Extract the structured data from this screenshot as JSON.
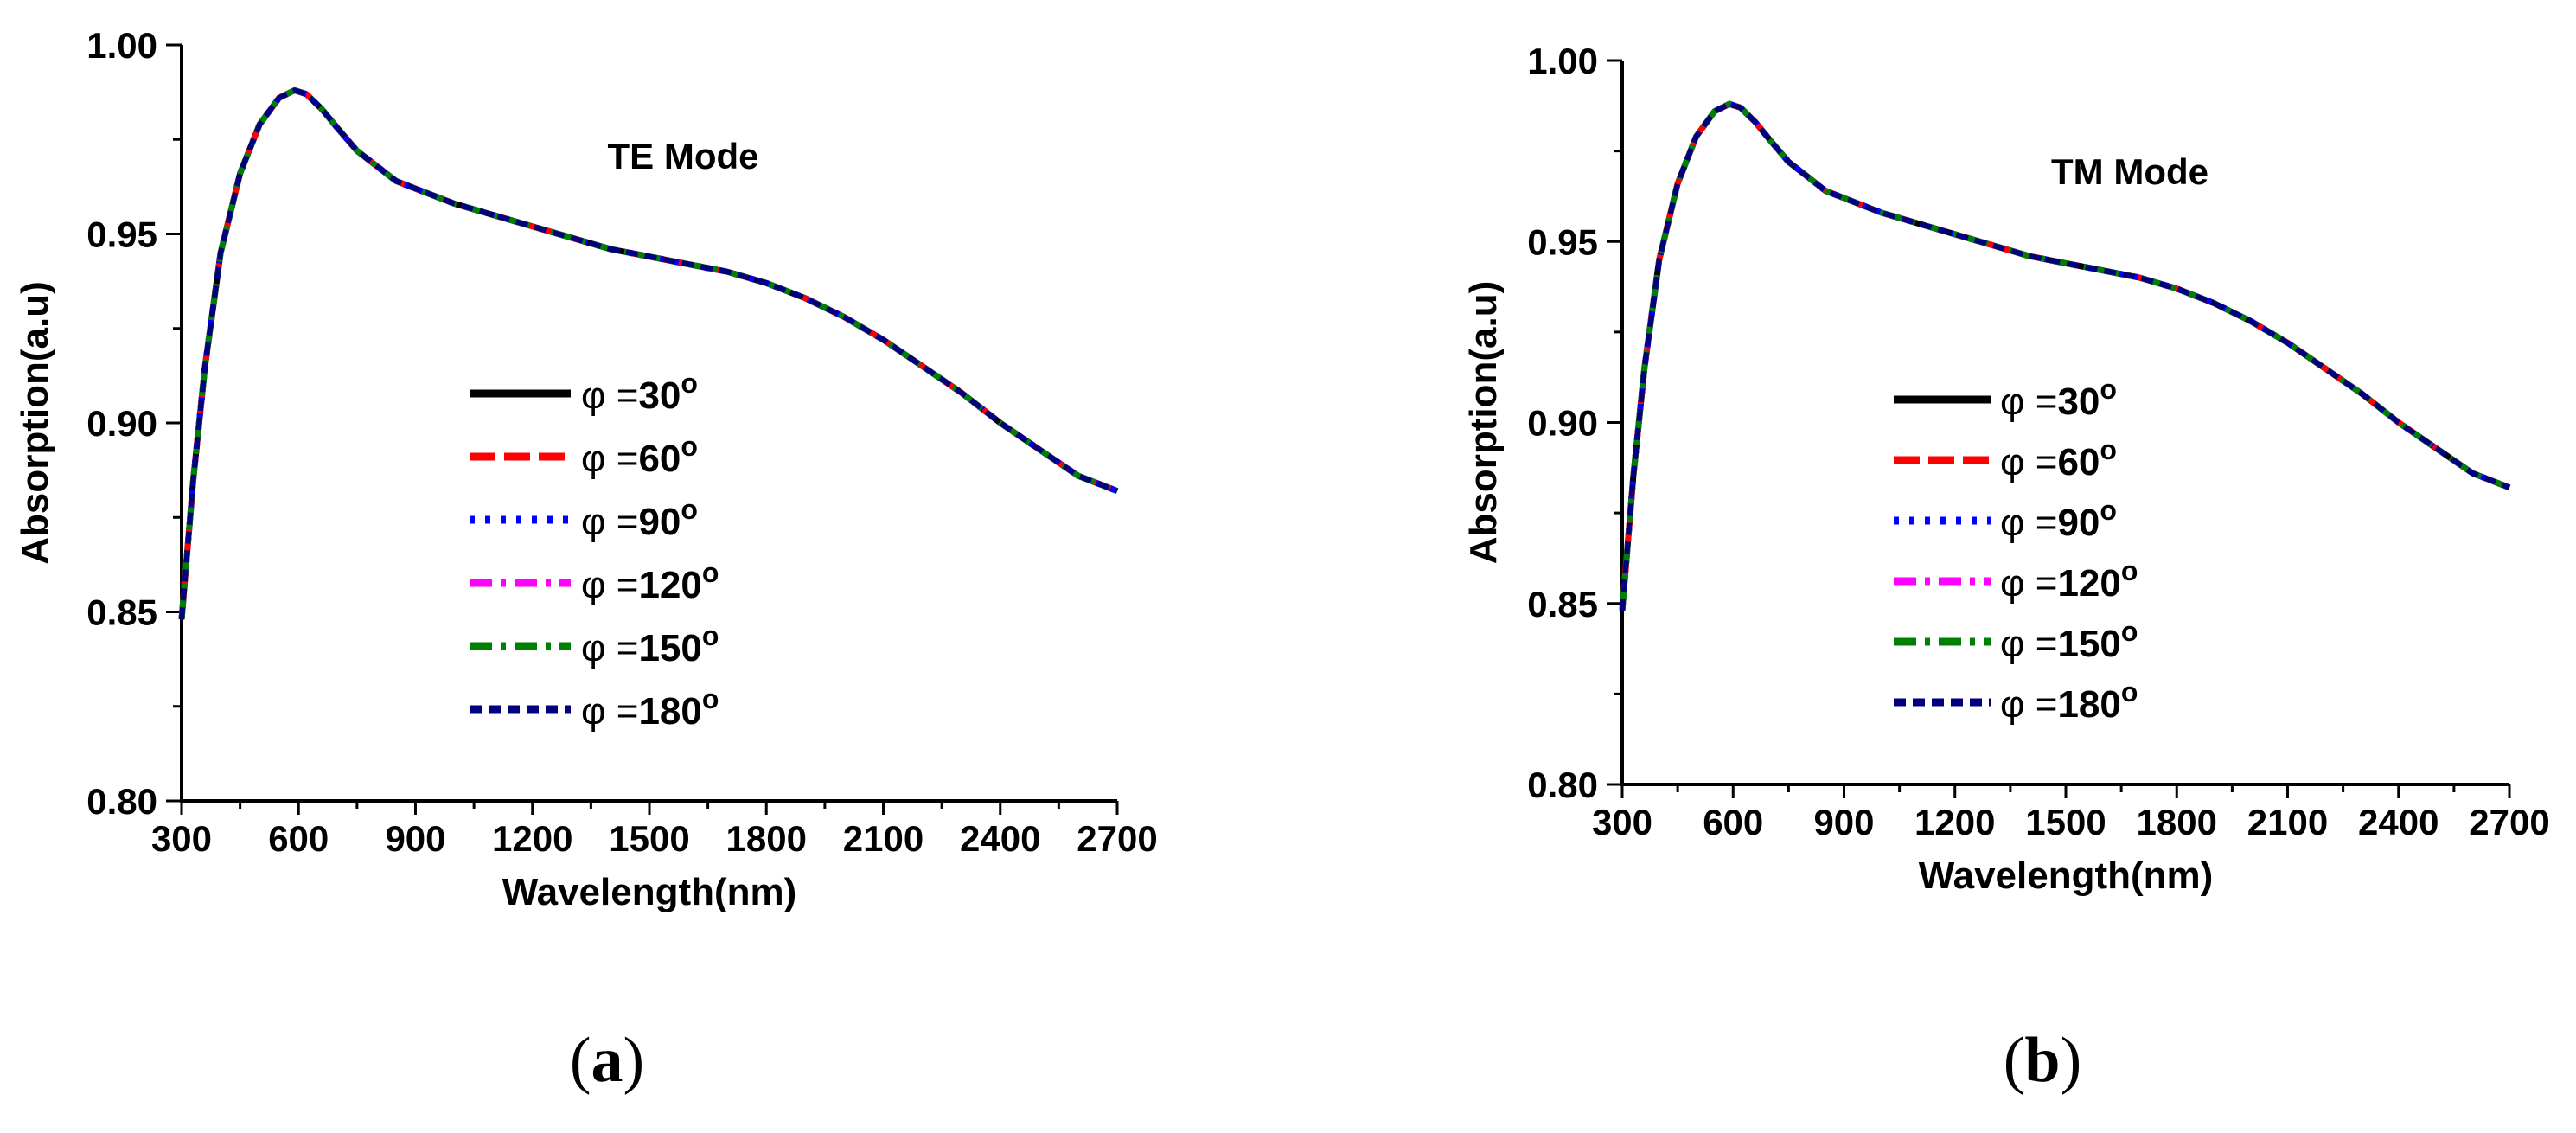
{
  "chart_data": [
    {
      "type": "line",
      "panel": "a",
      "mode_label": "TE Mode",
      "caption_open": "(",
      "caption_letter": "a",
      "caption_close": ")",
      "xlabel": "Wavelength(nm)",
      "ylabel": "Absorption(a.u)",
      "xlim": [
        300,
        2700
      ],
      "ylim": [
        0.8,
        1.0
      ],
      "x_major_ticks": [
        300,
        600,
        900,
        1200,
        1500,
        1800,
        2100,
        2400,
        2700
      ],
      "x_tick_labels": [
        "300",
        "600",
        "900",
        "1200",
        "1500",
        "1800",
        "2100",
        "2400",
        "2700"
      ],
      "y_major_ticks": [
        0.8,
        0.85,
        0.9,
        0.95,
        1.0
      ],
      "y_tick_labels": [
        "0.80",
        "0.85",
        "0.90",
        "0.95",
        "1.00"
      ],
      "legend_position": "center",
      "series": [
        {
          "name": "φ =30°",
          "symbol": "φ =",
          "angle": "30",
          "degree": "o",
          "color": "#000000",
          "dash": "solid"
        },
        {
          "name": "φ =60°",
          "symbol": "φ =",
          "angle": "60",
          "degree": "o",
          "color": "#ff0000",
          "dash": "dash"
        },
        {
          "name": "φ =90°",
          "symbol": "φ =",
          "angle": "90",
          "degree": "o",
          "color": "#0000ff",
          "dash": "dot"
        },
        {
          "name": "φ =120°",
          "symbol": "φ =",
          "angle": "120",
          "degree": "o",
          "color": "#ff00ff",
          "dash": "dashdot"
        },
        {
          "name": "φ =150°",
          "symbol": "φ =",
          "angle": "150",
          "degree": "o",
          "color": "#008000",
          "dash": "dashdot"
        },
        {
          "name": "φ =180°",
          "symbol": "φ =",
          "angle": "180",
          "degree": "o",
          "color": "#000080",
          "dash": "shortdash"
        }
      ],
      "x": [
        300,
        330,
        360,
        400,
        450,
        500,
        550,
        590,
        620,
        660,
        700,
        750,
        800,
        850,
        900,
        1000,
        1100,
        1200,
        1300,
        1400,
        1500,
        1600,
        1700,
        1800,
        1900,
        2000,
        2100,
        2200,
        2300,
        2400,
        2500,
        2600,
        2700
      ],
      "y": [
        0.848,
        0.885,
        0.915,
        0.945,
        0.966,
        0.979,
        0.986,
        0.988,
        0.987,
        0.983,
        0.978,
        0.972,
        0.968,
        0.964,
        0.962,
        0.958,
        0.955,
        0.952,
        0.949,
        0.946,
        0.944,
        0.942,
        0.94,
        0.937,
        0.933,
        0.928,
        0.922,
        0.915,
        0.908,
        0.9,
        0.893,
        0.886,
        0.882
      ]
    },
    {
      "type": "line",
      "panel": "b",
      "mode_label": "TM Mode",
      "caption_open": "(",
      "caption_letter": "b",
      "caption_close": ")",
      "xlabel": "Wavelength(nm)",
      "ylabel": "Absorption(a.u)",
      "xlim": [
        300,
        2700
      ],
      "ylim": [
        0.8,
        1.0
      ],
      "x_major_ticks": [
        300,
        600,
        900,
        1200,
        1500,
        1800,
        2100,
        2400,
        2700
      ],
      "x_tick_labels": [
        "300",
        "600",
        "900",
        "1200",
        "1500",
        "1800",
        "2100",
        "2400",
        "2700"
      ],
      "y_major_ticks": [
        0.8,
        0.85,
        0.9,
        0.95,
        1.0
      ],
      "y_tick_labels": [
        "0.80",
        "0.85",
        "0.90",
        "0.95",
        "1.00"
      ],
      "legend_position": "center",
      "series": [
        {
          "name": "φ =30°",
          "symbol": "φ =",
          "angle": "30",
          "degree": "o",
          "color": "#000000",
          "dash": "solid"
        },
        {
          "name": "φ =60°",
          "symbol": "φ =",
          "angle": "60",
          "degree": "o",
          "color": "#ff0000",
          "dash": "dash"
        },
        {
          "name": "φ =90°",
          "symbol": "φ =",
          "angle": "90",
          "degree": "o",
          "color": "#0000ff",
          "dash": "dot"
        },
        {
          "name": "φ =120°",
          "symbol": "φ =",
          "angle": "120",
          "degree": "o",
          "color": "#ff00ff",
          "dash": "dashdot"
        },
        {
          "name": "φ =150°",
          "symbol": "φ =",
          "angle": "150",
          "degree": "o",
          "color": "#008000",
          "dash": "dashdot"
        },
        {
          "name": "φ =180°",
          "symbol": "φ =",
          "angle": "180",
          "degree": "o",
          "color": "#000080",
          "dash": "shortdash"
        }
      ],
      "x": [
        300,
        330,
        360,
        400,
        450,
        500,
        550,
        590,
        620,
        660,
        700,
        750,
        800,
        850,
        900,
        1000,
        1100,
        1200,
        1300,
        1400,
        1500,
        1600,
        1700,
        1800,
        1900,
        2000,
        2100,
        2200,
        2300,
        2400,
        2500,
        2600,
        2700
      ],
      "y": [
        0.848,
        0.885,
        0.915,
        0.945,
        0.966,
        0.979,
        0.986,
        0.988,
        0.987,
        0.983,
        0.978,
        0.972,
        0.968,
        0.964,
        0.962,
        0.958,
        0.955,
        0.952,
        0.949,
        0.946,
        0.944,
        0.942,
        0.94,
        0.937,
        0.933,
        0.928,
        0.922,
        0.915,
        0.908,
        0.9,
        0.893,
        0.886,
        0.882
      ]
    }
  ]
}
